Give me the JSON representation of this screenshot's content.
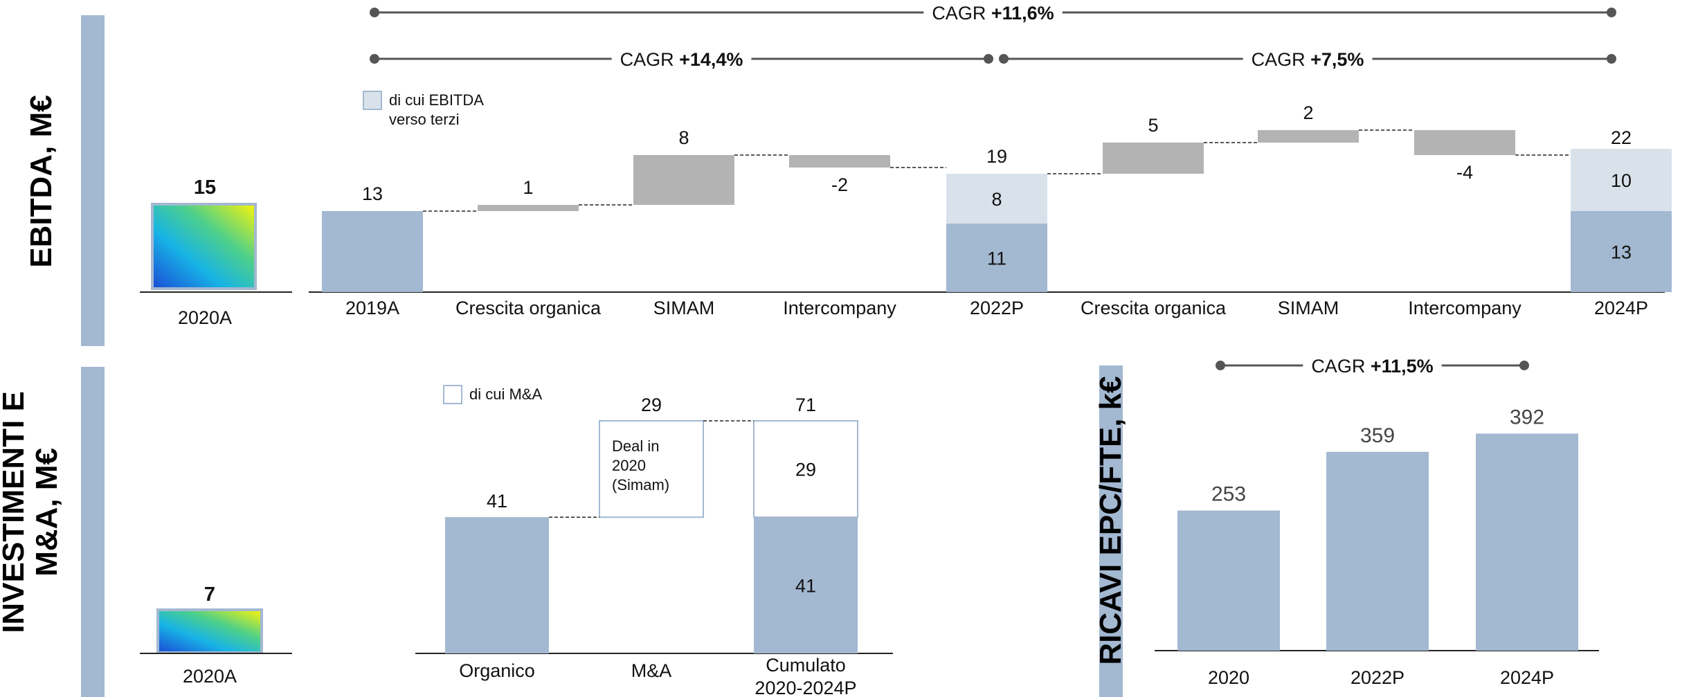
{
  "sections": {
    "ebitda": {
      "title": "EBITDA, M€"
    },
    "investimenti": {
      "title_line1": "INVESTIMENTI E",
      "title_line2": "M&A, M€"
    },
    "ricavi": {
      "title": "RICAVI EPC/FTE, k€"
    }
  },
  "colors": {
    "bar": "#a3b8d1",
    "grey": "#b3b3b3",
    "light": "#d9e2ea",
    "accent_bar": "#a3b8d1"
  },
  "chart_data": [
    {
      "type": "bar",
      "id": "ebitda-2020",
      "categories": [
        "2020A"
      ],
      "values": [
        15
      ],
      "icon": "gradient-square-icon"
    },
    {
      "type": "waterfall",
      "id": "ebitda-bridge",
      "categories": [
        "2019A",
        "Crescita organica",
        "SIMAM",
        "Intercompany",
        "2022P",
        "Crescita organica",
        "SIMAM",
        "Intercompany",
        "2024P"
      ],
      "values": [
        13,
        1,
        8,
        -2,
        19,
        5,
        2,
        -4,
        22
      ],
      "labels": [
        "13",
        "1",
        "8",
        "-2",
        "19",
        "5",
        "2",
        "-4",
        "22"
      ],
      "stacked_totals": {
        "2022P": {
          "base": 11,
          "terzi": 8
        },
        "2024P": {
          "base": 13,
          "terzi": 10
        }
      },
      "legend": "di cui EBITDA verso terzi",
      "cagr": [
        {
          "label": "CAGR",
          "value": "+11,6%",
          "from": "2019A",
          "to": "2024P"
        },
        {
          "label": "CAGR",
          "value": "+14,4%",
          "from": "2019A",
          "to": "2022P"
        },
        {
          "label": "CAGR",
          "value": "+7,5%",
          "from": "2022P",
          "to": "2024P"
        }
      ]
    },
    {
      "type": "bar",
      "id": "investimenti-2020",
      "categories": [
        "2020A"
      ],
      "values": [
        7
      ],
      "icon": "gradient-square-icon"
    },
    {
      "type": "waterfall",
      "id": "investimenti-bridge",
      "categories": [
        "Organico",
        "M&A",
        "Cumulato 2020-2024P"
      ],
      "values": [
        41,
        29,
        71
      ],
      "labels": [
        "41",
        "29",
        "71"
      ],
      "stacked_totals": {
        "Cumulato 2020-2024P": {
          "base": 41,
          "ma": 29
        }
      },
      "annotation": "Deal in 2020 (Simam)",
      "legend": "di cui M&A"
    },
    {
      "type": "bar",
      "id": "ricavi-epc",
      "categories": [
        "2020",
        "2022P",
        "2024P"
      ],
      "values": [
        253,
        359,
        392
      ],
      "cagr": {
        "label": "CAGR",
        "value": "+11,5%",
        "from": "2020",
        "to": "2024P"
      }
    }
  ]
}
